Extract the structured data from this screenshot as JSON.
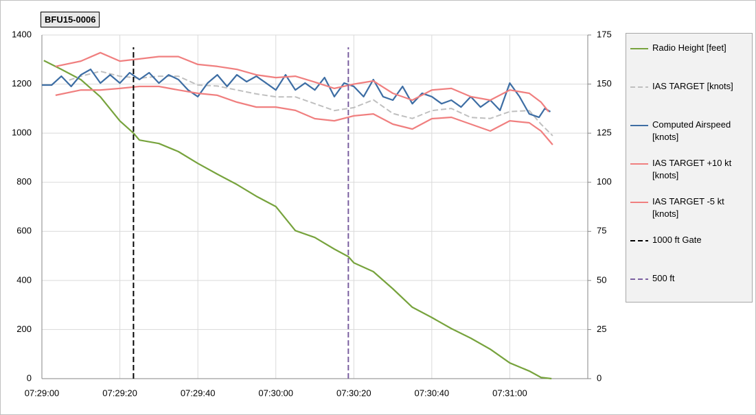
{
  "chart_data": {
    "type": "line",
    "title": "BFU15-0006",
    "xlim": [
      0,
      140
    ],
    "xticks": [
      {
        "value": 0,
        "label": "07:29:00"
      },
      {
        "value": 20,
        "label": "07:29:20"
      },
      {
        "value": 40,
        "label": "07:29:40"
      },
      {
        "value": 60,
        "label": "07:30:00"
      },
      {
        "value": 80,
        "label": "07:30:20"
      },
      {
        "value": 100,
        "label": "07:30:40"
      },
      {
        "value": 120,
        "label": "07:31:00"
      }
    ],
    "ylim": [
      0,
      1400
    ],
    "yticks": [
      0,
      200,
      400,
      600,
      800,
      1000,
      1200,
      1400
    ],
    "y2lim": [
      0,
      175
    ],
    "y2ticks": [
      0,
      25,
      50,
      75,
      100,
      125,
      150,
      175
    ],
    "grid": true,
    "series": [
      {
        "name": "Radio Height [feet]",
        "color": "#77a33d",
        "dash": false,
        "x": [
          0.5,
          5,
          10,
          15,
          20,
          23.5,
          25,
          30,
          35,
          40,
          45,
          50,
          55,
          60,
          65,
          70,
          75,
          78.6,
          80,
          85,
          90,
          95,
          100,
          105,
          110,
          115,
          120,
          125,
          128,
          130.7
        ],
        "values": [
          1296,
          1260,
          1218,
          1148,
          1050,
          1000,
          972,
          958,
          925,
          877,
          833,
          791,
          743,
          701,
          603,
          575,
          528,
          497,
          472,
          436,
          366,
          291,
          249,
          204,
          165,
          120,
          64,
          31,
          5,
          0
        ]
      },
      {
        "name": "IAS TARGET [knots]",
        "color": "#bfbfbf",
        "dash": true,
        "axis": "y2",
        "x": [
          7,
          10,
          15,
          20,
          25,
          30,
          35,
          40,
          45,
          50,
          55,
          60,
          65,
          70,
          75,
          80,
          85,
          90,
          95,
          100,
          105,
          110,
          115,
          120,
          125,
          128,
          131
        ],
        "values": [
          152,
          154,
          156.5,
          154,
          153,
          154,
          154,
          149.5,
          149,
          147,
          145,
          143.5,
          143.5,
          140,
          136.5,
          138,
          142,
          135,
          132.5,
          136.5,
          137.6,
          133,
          132.5,
          136,
          136.5,
          129.6,
          123.7
        ]
      },
      {
        "name": "Computed Airspeed [knots]",
        "color": "#3e6ea4",
        "dash": false,
        "axis": "y2",
        "x": [
          0,
          2.5,
          5,
          7.5,
          10,
          12.5,
          15,
          17.5,
          20,
          22.5,
          25,
          27.5,
          30,
          32.5,
          35,
          37.5,
          40,
          42.5,
          45,
          47.5,
          50,
          52.5,
          55,
          57.5,
          60,
          62.5,
          65,
          67.5,
          70,
          72.5,
          75,
          77.5,
          80,
          82.5,
          85,
          87.5,
          90,
          92.5,
          95,
          97.5,
          100,
          102.5,
          105,
          107.5,
          110,
          112.5,
          115,
          117.5,
          120,
          122.5,
          125,
          127.5,
          129,
          130.4
        ],
        "values": [
          149.5,
          149.5,
          154,
          148.8,
          154.7,
          157.5,
          150.5,
          154.7,
          150.5,
          155.8,
          152.3,
          155.8,
          150.5,
          154.7,
          152.3,
          147,
          143.6,
          150.5,
          154.7,
          148.8,
          154.7,
          151.2,
          154,
          150.5,
          147,
          154.7,
          147,
          150.5,
          147,
          153.3,
          143.6,
          150.5,
          148.8,
          143.6,
          152.3,
          143.6,
          141.8,
          148.8,
          140,
          145.3,
          143.6,
          140,
          141.8,
          138.3,
          143.6,
          138.3,
          141.8,
          136.6,
          150.5,
          143.6,
          134.8,
          133.1,
          137.6,
          135.9
        ]
      },
      {
        "name": "IAS TARGET +10 kt [knots]",
        "color": "#f07f7f",
        "dash": false,
        "axis": "y2",
        "x": [
          3.5,
          10,
          15,
          20,
          25,
          30,
          35,
          40,
          45,
          50,
          55,
          60,
          65,
          70,
          75,
          80,
          85,
          90,
          95,
          100,
          105,
          110,
          115,
          120,
          125,
          128,
          130
        ],
        "values": [
          159,
          161.7,
          166,
          161.7,
          162.8,
          164,
          164,
          160,
          159,
          157.5,
          154.7,
          153.3,
          154,
          151,
          147.8,
          150,
          151.6,
          145.3,
          141.8,
          147,
          147.8,
          143.6,
          141.8,
          147,
          145.3,
          140.8,
          135.9
        ]
      },
      {
        "name": "IAS TARGET -5 kt [knots]",
        "color": "#f07f7f",
        "dash": false,
        "axis": "y2",
        "x": [
          3.5,
          10,
          15,
          20,
          25,
          30,
          35,
          40,
          45,
          50,
          55,
          60,
          65,
          70,
          75,
          80,
          85,
          90,
          95,
          100,
          105,
          110,
          115,
          120,
          125,
          128,
          131
        ],
        "values": [
          144.3,
          147,
          147,
          147.8,
          148.8,
          148.8,
          147,
          145.3,
          144.3,
          140.8,
          138.3,
          138.3,
          136.6,
          132.4,
          131.3,
          133.8,
          134.8,
          129.6,
          127.1,
          132.4,
          133.1,
          129.6,
          126.1,
          131.3,
          130.3,
          126.1,
          119.1
        ]
      },
      {
        "name": "1000 ft Gate",
        "color": "#000000",
        "dash": true,
        "x": [
          23.5,
          23.5
        ],
        "values": [
          0,
          1350
        ]
      },
      {
        "name": "500 ft",
        "color": "#7a5fa0",
        "dash": true,
        "x": [
          78.6,
          78.6
        ],
        "values": [
          0,
          1350
        ]
      }
    ]
  }
}
